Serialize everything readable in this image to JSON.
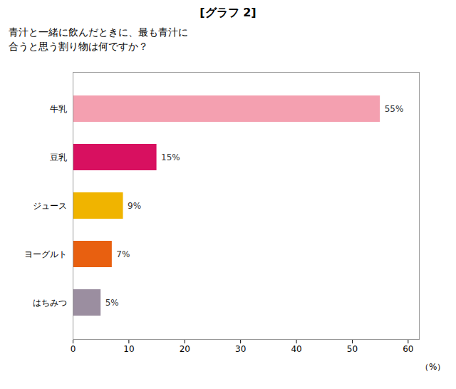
{
  "chart_data": {
    "type": "bar",
    "orientation": "horizontal",
    "title": "[グラフ 2]",
    "subtitle": "青汁と一緒に飲んだときに、最も青汁に\n合うと思う割り物は何ですか？",
    "categories": [
      "はちみつ",
      "ヨーグルト",
      "ジュース",
      "豆乳",
      "牛乳"
    ],
    "values": [
      5,
      7,
      9,
      15,
      55
    ],
    "value_labels": [
      "5%",
      "7%",
      "9%",
      "15%",
      "55%"
    ],
    "colors": [
      "#9B8EA0",
      "#E86010",
      "#F0B400",
      "#D81060",
      "#F4A0B0"
    ],
    "xlabel": "（%）",
    "xlim": [
      0,
      62
    ],
    "xticks": [
      0,
      10,
      20,
      30,
      40,
      50,
      60
    ],
    "grid": false,
    "data_labels": true
  }
}
